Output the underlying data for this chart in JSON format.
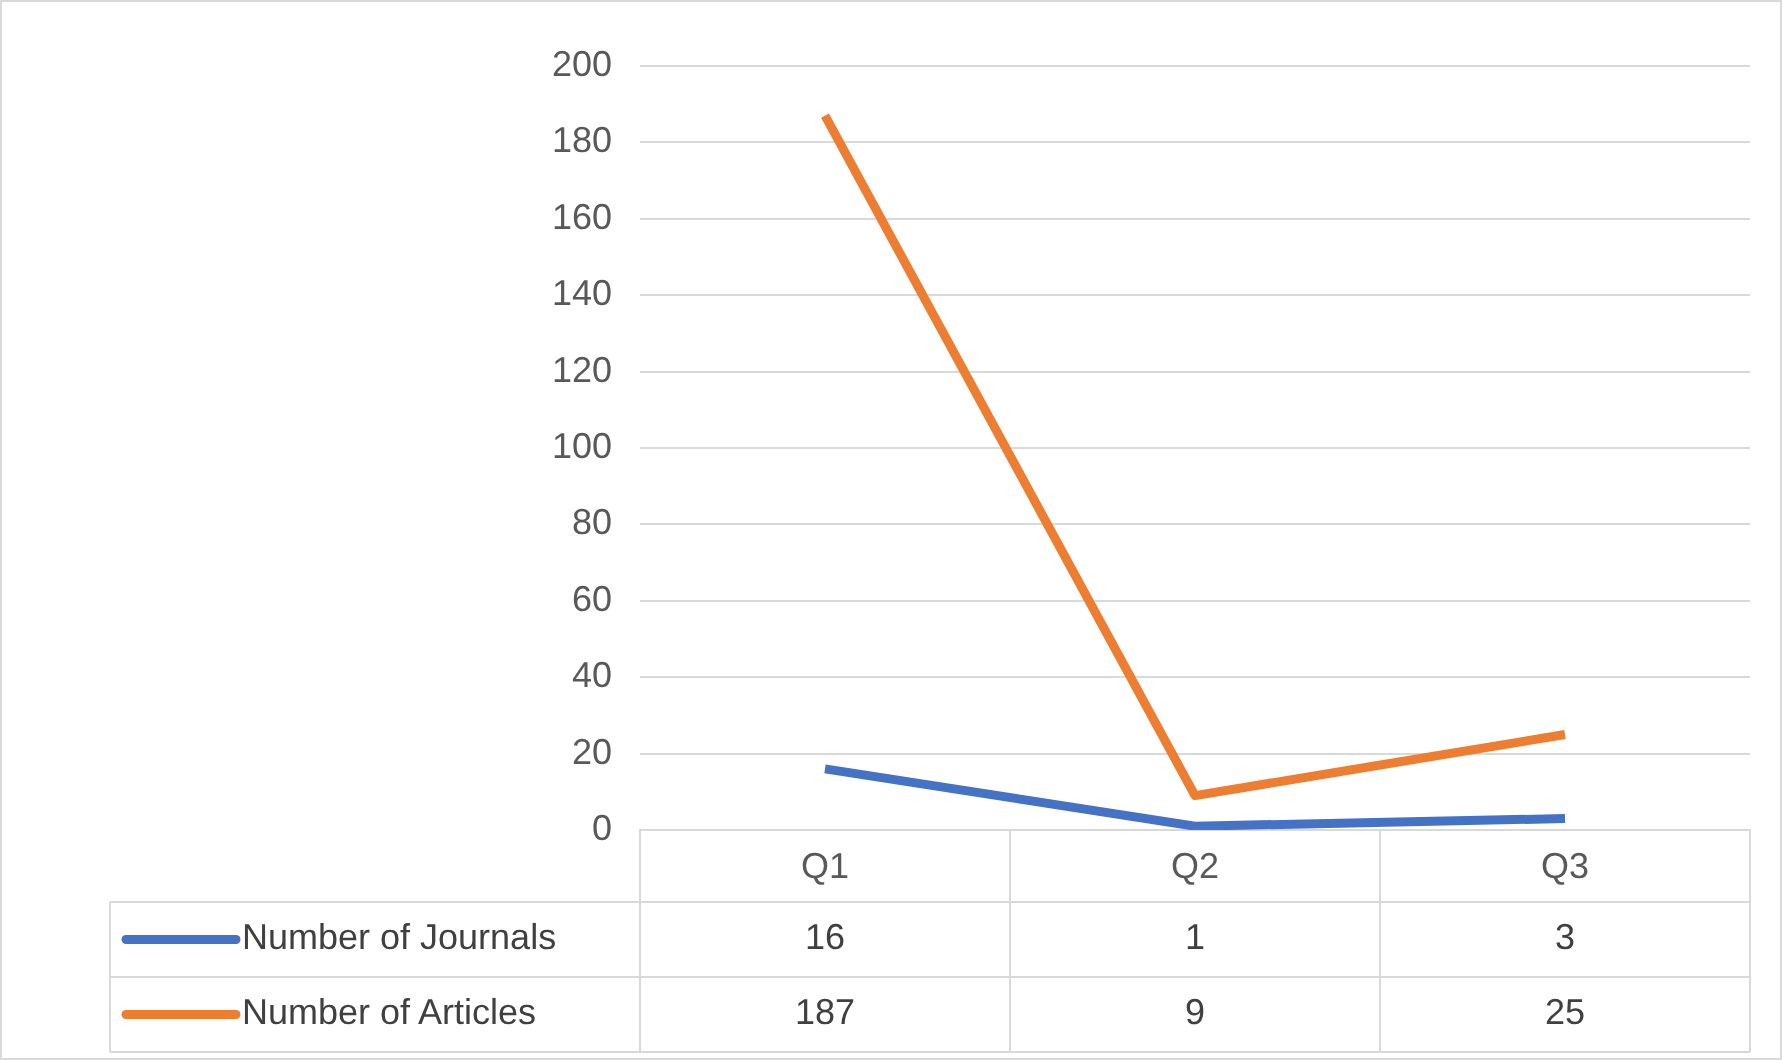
{
  "chart_data": {
    "type": "line",
    "categories": [
      "Q1",
      "Q2",
      "Q3"
    ],
    "series": [
      {
        "name": "Number of Journals",
        "color": "#4472c4",
        "values": [
          16,
          1,
          3
        ]
      },
      {
        "name": "Number of Articles",
        "color": "#ed7d31",
        "values": [
          187,
          9,
          25
        ]
      }
    ],
    "ylim": [
      0,
      200
    ],
    "yticks": [
      0,
      20,
      40,
      60,
      80,
      100,
      120,
      140,
      160,
      180,
      200
    ],
    "grid": "y",
    "legend": "bottom",
    "data_labels": true,
    "marker": "none",
    "line_style": "solid"
  }
}
